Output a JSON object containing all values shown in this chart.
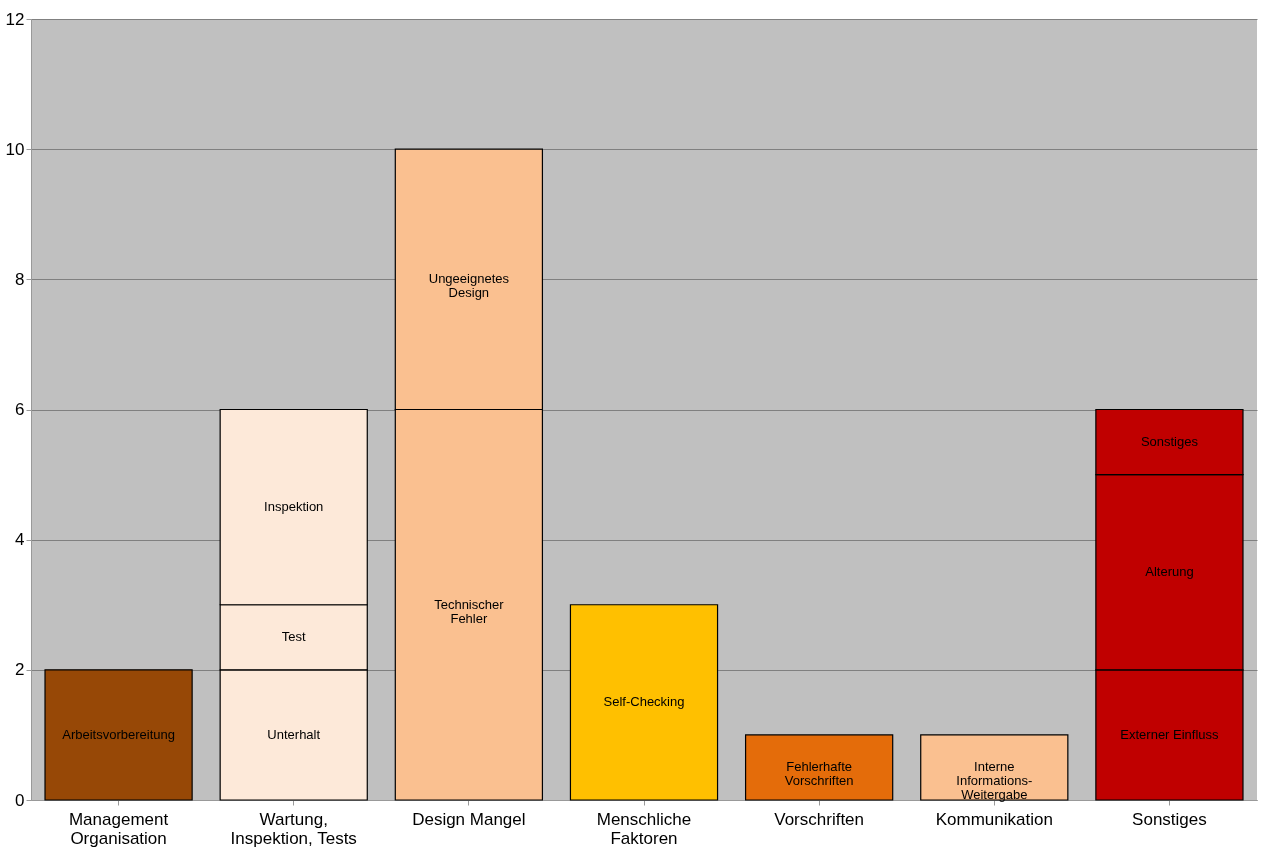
{
  "chart_data": {
    "type": "bar",
    "stacked": true,
    "categories": [
      "Management Organisation",
      "Wartung, Inspektion, Tests",
      "Design Mangel",
      "Menschliche Faktoren",
      "Vorschriften",
      "Kommunikation",
      "Sonstiges"
    ],
    "series": [
      {
        "name": "Arbeitsvorbereitung",
        "color": "#974806",
        "values": [
          2,
          null,
          null,
          null,
          null,
          null,
          null
        ]
      },
      {
        "name": "Unterhalt",
        "color": "#fde9d9",
        "values": [
          null,
          2,
          null,
          null,
          null,
          null,
          null
        ]
      },
      {
        "name": "Test",
        "color": "#fde9d9",
        "values": [
          null,
          1,
          null,
          null,
          null,
          null,
          null
        ]
      },
      {
        "name": "Inspektion",
        "color": "#fde9d9",
        "values": [
          null,
          3,
          null,
          null,
          null,
          null,
          null
        ]
      },
      {
        "name": "Technischer Fehler",
        "color": "#fac090",
        "values": [
          null,
          null,
          6,
          null,
          null,
          null,
          null
        ]
      },
      {
        "name": "Ungeeignetes Design",
        "color": "#fac090",
        "values": [
          null,
          null,
          4,
          null,
          null,
          null,
          null
        ]
      },
      {
        "name": "Self-Checking",
        "color": "#ffc000",
        "values": [
          null,
          null,
          null,
          3,
          null,
          null,
          null
        ]
      },
      {
        "name": "Fehlerhafte Vorschriften",
        "color": "#e46c0a",
        "values": [
          null,
          null,
          null,
          null,
          1,
          null,
          null
        ]
      },
      {
        "name": "Interne Informations-Weitergabe",
        "color": "#fac090",
        "values": [
          null,
          null,
          null,
          null,
          null,
          1,
          null
        ]
      },
      {
        "name": "Externer Einfluss",
        "color": "#c00000",
        "values": [
          null,
          null,
          null,
          null,
          null,
          null,
          2
        ]
      },
      {
        "name": "Alterung",
        "color": "#c00000",
        "values": [
          null,
          null,
          null,
          null,
          null,
          null,
          3
        ]
      },
      {
        "name": "Sonstiges",
        "color": "#c00000",
        "values": [
          null,
          null,
          null,
          null,
          null,
          null,
          1
        ]
      }
    ],
    "ylim": [
      0,
      12
    ],
    "yticks": [
      0,
      2,
      4,
      6,
      8,
      10,
      12
    ],
    "grid": "y"
  }
}
